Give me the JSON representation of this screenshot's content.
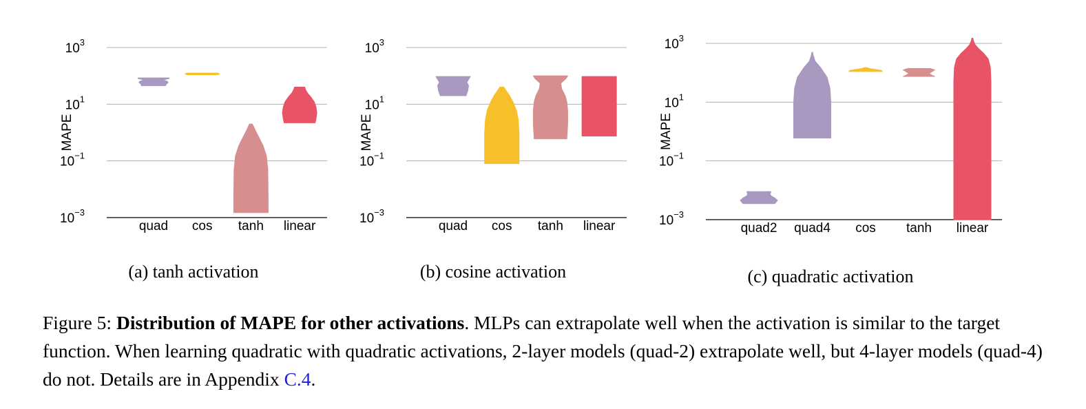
{
  "chart_data": [
    {
      "type": "violin",
      "subcaption": "(a) tanh activation",
      "ylabel": "MAPE",
      "yscale": "log",
      "ylim": [
        0.001,
        1000
      ],
      "yticks": [
        0.001,
        0.1,
        10,
        1000
      ],
      "ytick_labels": [
        {
          "base": "10",
          "exp": "−3"
        },
        {
          "base": "10",
          "exp": "−1"
        },
        {
          "base": "10",
          "exp": "1"
        },
        {
          "base": "10",
          "exp": "3"
        }
      ],
      "grid": true,
      "categories": [
        "quad",
        "cos",
        "tanh",
        "linear"
      ],
      "series": [
        {
          "category": "quad",
          "color": "#a899c0",
          "min": 45,
          "max": 85,
          "profile": [
            [
              45,
              0.7
            ],
            [
              52,
              0.75
            ],
            [
              58,
              0.85
            ],
            [
              64,
              0.8
            ],
            [
              72,
              0.55
            ],
            [
              80,
              0.9
            ],
            [
              85,
              0.9
            ]
          ]
        },
        {
          "category": "cos",
          "color": "#f7c02a",
          "min": 110,
          "max": 125,
          "profile": [
            [
              110,
              0.9
            ],
            [
              117,
              1.0
            ],
            [
              125,
              0.9
            ]
          ]
        },
        {
          "category": "tanh",
          "color": "#d68e8e",
          "min": 0.0015,
          "max": 2.0,
          "profile": [
            [
              0.0015,
              1.0
            ],
            [
              0.005,
              1.0
            ],
            [
              0.05,
              0.98
            ],
            [
              0.15,
              0.9
            ],
            [
              0.35,
              0.7
            ],
            [
              0.7,
              0.45
            ],
            [
              1.2,
              0.25
            ],
            [
              1.7,
              0.14
            ],
            [
              2.0,
              0.08
            ]
          ]
        },
        {
          "category": "linear",
          "color": "#e85366",
          "min": 2.2,
          "max": 40,
          "profile": [
            [
              2.2,
              0.9
            ],
            [
              3,
              0.95
            ],
            [
              5,
              1.0
            ],
            [
              8,
              0.95
            ],
            [
              12,
              0.85
            ],
            [
              18,
              0.65
            ],
            [
              25,
              0.45
            ],
            [
              32,
              0.35
            ],
            [
              40,
              0.3
            ]
          ]
        }
      ]
    },
    {
      "type": "violin",
      "subcaption": "(b) cosine activation",
      "ylabel": "MAPE",
      "yscale": "log",
      "ylim": [
        0.001,
        1000
      ],
      "yticks": [
        0.001,
        0.1,
        10,
        1000
      ],
      "ytick_labels": [
        {
          "base": "10",
          "exp": "−3"
        },
        {
          "base": "10",
          "exp": "−1"
        },
        {
          "base": "10",
          "exp": "1"
        },
        {
          "base": "10",
          "exp": "3"
        }
      ],
      "grid": true,
      "categories": [
        "quad",
        "cos",
        "tanh",
        "linear"
      ],
      "series": [
        {
          "category": "quad",
          "color": "#a899c0",
          "min": 20,
          "max": 95,
          "profile": [
            [
              20,
              0.75
            ],
            [
              30,
              0.85
            ],
            [
              45,
              0.9
            ],
            [
              60,
              0.8
            ],
            [
              75,
              0.9
            ],
            [
              95,
              1.0
            ]
          ]
        },
        {
          "category": "cos",
          "color": "#f7c02a",
          "min": 0.08,
          "max": 40,
          "profile": [
            [
              0.08,
              1.0
            ],
            [
              0.3,
              1.0
            ],
            [
              1,
              1.0
            ],
            [
              3,
              0.95
            ],
            [
              6,
              0.85
            ],
            [
              12,
              0.65
            ],
            [
              20,
              0.45
            ],
            [
              30,
              0.25
            ],
            [
              40,
              0.12
            ]
          ]
        },
        {
          "category": "tanh",
          "color": "#d68e8e",
          "min": 0.6,
          "max": 100,
          "profile": [
            [
              0.6,
              0.95
            ],
            [
              2,
              1.0
            ],
            [
              6,
              1.0
            ],
            [
              12,
              0.95
            ],
            [
              20,
              0.85
            ],
            [
              35,
              0.65
            ],
            [
              55,
              0.6
            ],
            [
              80,
              0.9
            ],
            [
              100,
              1.0
            ]
          ]
        },
        {
          "category": "linear",
          "color": "#e85366",
          "min": 0.75,
          "max": 95,
          "profile": [
            [
              0.75,
              1.0
            ],
            [
              3,
              1.0
            ],
            [
              10,
              1.0
            ],
            [
              30,
              1.0
            ],
            [
              60,
              1.0
            ],
            [
              95,
              1.0
            ]
          ]
        }
      ]
    },
    {
      "type": "violin",
      "subcaption": "(c) quadratic activation",
      "ylabel": "MAPE",
      "yscale": "log",
      "ylim": [
        0.001,
        1000
      ],
      "yticks": [
        0.001,
        0.1,
        10,
        1000
      ],
      "ytick_labels": [
        {
          "base": "10",
          "exp": "−3"
        },
        {
          "base": "10",
          "exp": "−1"
        },
        {
          "base": "10",
          "exp": "1"
        },
        {
          "base": "10",
          "exp": "3"
        }
      ],
      "grid": true,
      "categories": [
        "quad2",
        "quad4",
        "cos",
        "tanh",
        "linear"
      ],
      "series": [
        {
          "category": "quad2",
          "color": "#a899c0",
          "min": 0.0035,
          "max": 0.009,
          "profile": [
            [
              0.0035,
              0.85
            ],
            [
              0.0045,
              1.0
            ],
            [
              0.0055,
              0.85
            ],
            [
              0.0065,
              0.65
            ],
            [
              0.0075,
              0.6
            ],
            [
              0.009,
              0.65
            ]
          ]
        },
        {
          "category": "quad4",
          "color": "#a899c0",
          "min": 0.6,
          "max": 500,
          "profile": [
            [
              0.6,
              1.0
            ],
            [
              3,
              1.0
            ],
            [
              10,
              1.0
            ],
            [
              30,
              0.95
            ],
            [
              70,
              0.8
            ],
            [
              150,
              0.45
            ],
            [
              250,
              0.15
            ],
            [
              400,
              0.05
            ],
            [
              500,
              0.02
            ]
          ]
        },
        {
          "category": "cos",
          "color": "#f7c02a",
          "min": 110,
          "max": 150,
          "profile": [
            [
              110,
              0.9
            ],
            [
              120,
              0.85
            ],
            [
              130,
              0.5
            ],
            [
              140,
              0.2
            ],
            [
              150,
              0.05
            ]
          ]
        },
        {
          "category": "tanh",
          "color": "#d68e8e",
          "min": 75,
          "max": 140,
          "profile": [
            [
              75,
              0.85
            ],
            [
              82,
              0.7
            ],
            [
              95,
              0.55
            ],
            [
              110,
              0.7
            ],
            [
              125,
              0.85
            ],
            [
              140,
              0.6
            ]
          ]
        },
        {
          "category": "linear",
          "color": "#e85366",
          "min": 0.001,
          "max": 1500,
          "profile": [
            [
              0.001,
              1.0
            ],
            [
              0.01,
              1.0
            ],
            [
              1,
              1.0
            ],
            [
              50,
              1.0
            ],
            [
              150,
              0.97
            ],
            [
              300,
              0.85
            ],
            [
              450,
              0.62
            ],
            [
              650,
              0.35
            ],
            [
              900,
              0.15
            ],
            [
              1200,
              0.06
            ],
            [
              1500,
              0.03
            ]
          ]
        }
      ]
    }
  ],
  "caption": {
    "prefix": "Figure 5: ",
    "bold": "Distribution of MAPE for other activations",
    "rest": ". MLPs can extrapolate well when the activation is similar to the target function. When learning quadratic with quadratic activations, 2-layer models (quad-2) extrapolate well, but 4-layer models (quad-4) do not. Details are in Appendix ",
    "link": "C.4",
    "end": "."
  }
}
